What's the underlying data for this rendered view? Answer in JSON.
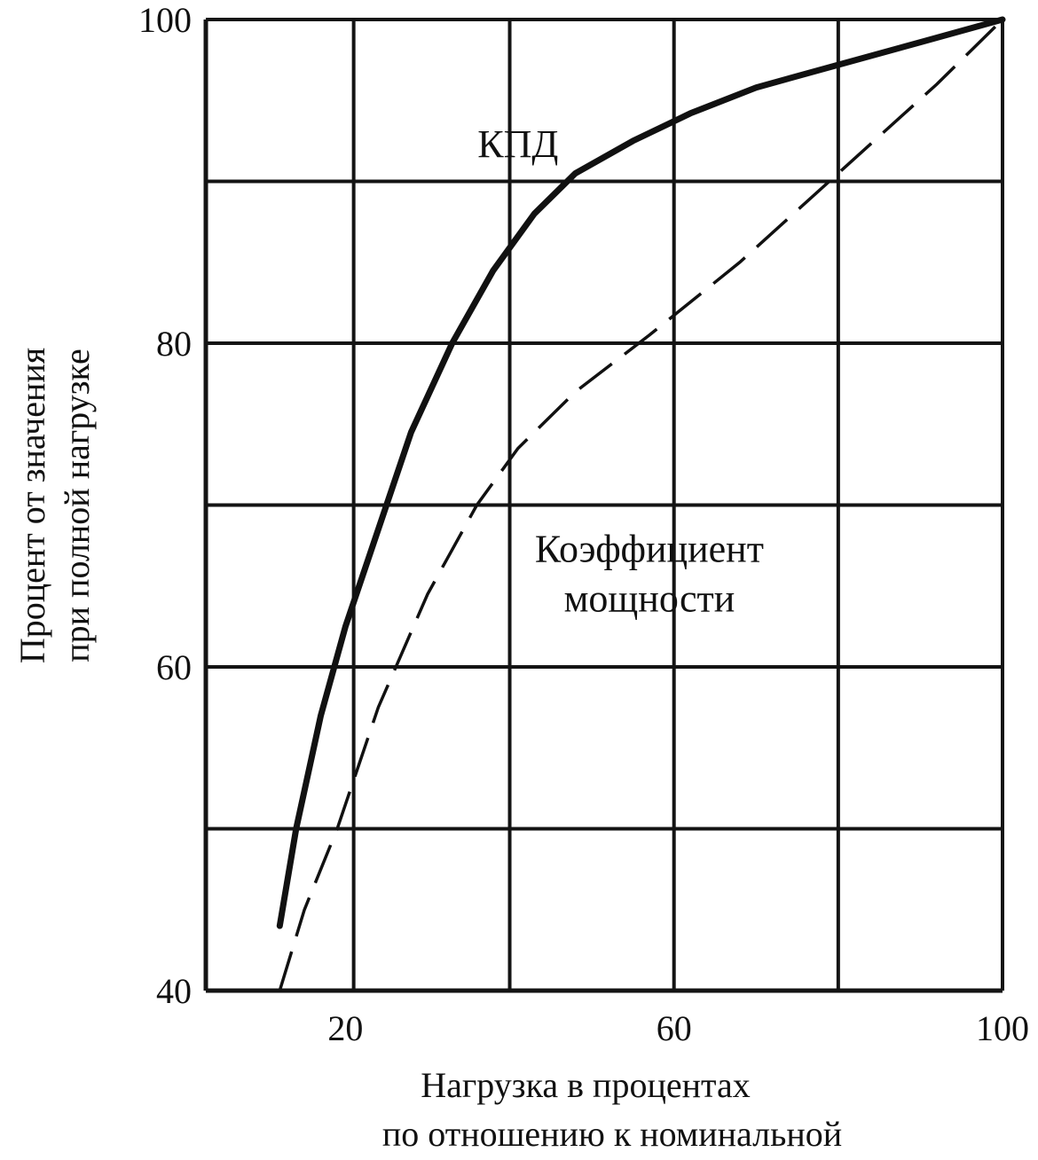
{
  "chart_data": {
    "type": "line",
    "title": "",
    "xlabel": [
      "Нагрузка в процентах",
      "по отношению к номинальной"
    ],
    "ylabel": [
      "Процент от значения",
      "при полной нагрузке"
    ],
    "xlim": [
      3,
      100
    ],
    "ylim": [
      40,
      100
    ],
    "x_ticks": [
      20,
      60,
      100
    ],
    "y_ticks": [
      40,
      60,
      80,
      100
    ],
    "x_tick_labels": [
      "20",
      "60",
      "100"
    ],
    "y_tick_labels": [
      "40",
      "60",
      "80",
      "100"
    ],
    "x_gridlines": [
      21,
      40,
      60,
      80,
      100
    ],
    "y_gridlines": [
      40,
      50,
      60,
      70,
      80,
      90,
      100
    ],
    "grid": true,
    "legend": "none",
    "series": [
      {
        "name": "КПД",
        "style": "solid",
        "color": "#111111",
        "points": [
          [
            12,
            44.0
          ],
          [
            14,
            50.0
          ],
          [
            17,
            57.0
          ],
          [
            20,
            62.5
          ],
          [
            24,
            68.5
          ],
          [
            28,
            74.5
          ],
          [
            33,
            80.0
          ],
          [
            38,
            84.5
          ],
          [
            43,
            88.0
          ],
          [
            48,
            90.5
          ],
          [
            55,
            92.5
          ],
          [
            62,
            94.2
          ],
          [
            70,
            95.8
          ],
          [
            80,
            97.2
          ],
          [
            90,
            98.6
          ],
          [
            100,
            100.0
          ]
        ]
      },
      {
        "name": "Коэффициент мощности",
        "style": "dashed",
        "color": "#111111",
        "points": [
          [
            12,
            40.0
          ],
          [
            15,
            45.0
          ],
          [
            19,
            50.0
          ],
          [
            24,
            57.5
          ],
          [
            30,
            64.5
          ],
          [
            36,
            70.0
          ],
          [
            41,
            73.5
          ],
          [
            48,
            77.0
          ],
          [
            57,
            80.5
          ],
          [
            68,
            85.0
          ],
          [
            80,
            90.5
          ],
          [
            92,
            96.0
          ],
          [
            100,
            100.0
          ]
        ]
      }
    ],
    "annotations": [
      {
        "series": 0,
        "lines": [
          "КПД"
        ],
        "x": 41,
        "y": 91.5
      },
      {
        "series": 1,
        "lines": [
          "Коэффициент",
          "мощности"
        ],
        "x": 57,
        "y": 66.5
      }
    ]
  }
}
